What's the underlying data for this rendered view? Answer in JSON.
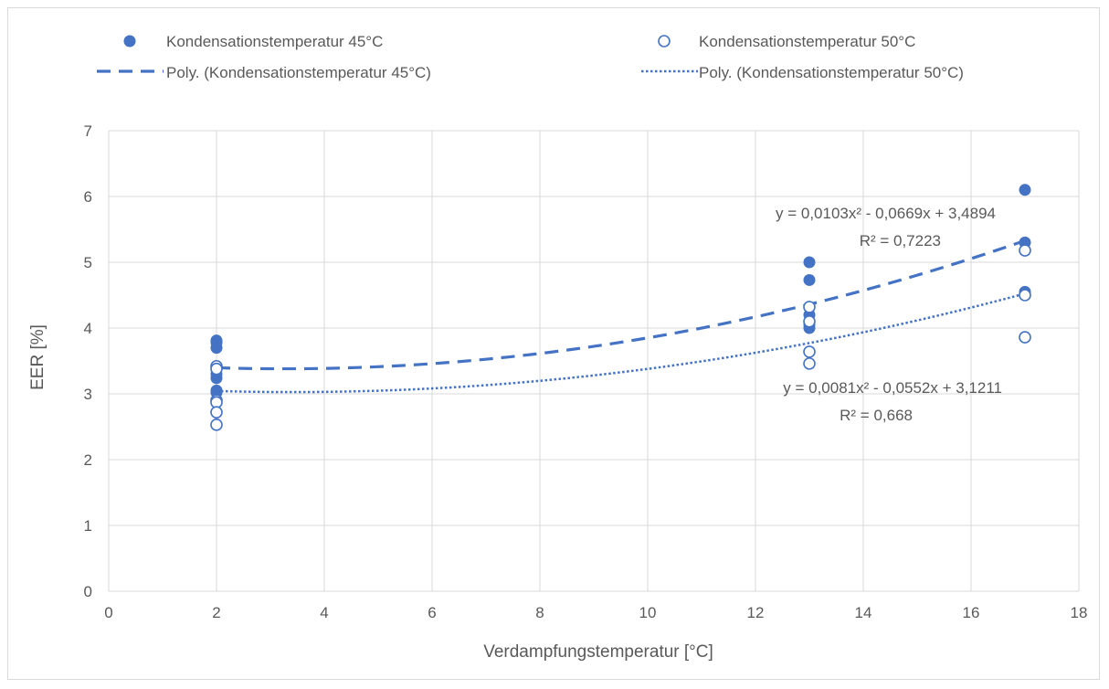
{
  "chart_data": {
    "type": "scatter",
    "title": "",
    "xlabel": "Verdampfungstemperatur [°C]",
    "ylabel": "EER [%]",
    "xlim": [
      0,
      18
    ],
    "ylim": [
      0,
      7
    ],
    "x_ticks": [
      0,
      2,
      4,
      6,
      8,
      10,
      12,
      14,
      16,
      18
    ],
    "y_ticks": [
      0,
      1,
      2,
      3,
      4,
      5,
      6,
      7
    ],
    "grid": true,
    "legend_position": "top",
    "colors": {
      "accent": "#4472c4",
      "grid": "#d9d9d9",
      "text": "#595959"
    },
    "series": [
      {
        "name": "Kondensationstemperatur 45°C",
        "marker": "filled-circle",
        "points": [
          [
            2,
            3.81
          ],
          [
            2,
            3.78
          ],
          [
            2,
            3.7
          ],
          [
            2,
            3.3
          ],
          [
            2,
            3.24
          ],
          [
            2,
            3.05
          ],
          [
            2,
            3.02
          ],
          [
            13,
            5.0
          ],
          [
            13,
            4.73
          ],
          [
            13,
            4.2
          ],
          [
            13,
            4.05
          ],
          [
            13,
            4.0
          ],
          [
            17,
            6.1
          ],
          [
            17,
            5.3
          ],
          [
            17,
            4.55
          ]
        ]
      },
      {
        "name": "Kondensationstemperatur 50°C",
        "marker": "hollow-circle",
        "points": [
          [
            2,
            3.42
          ],
          [
            2,
            3.38
          ],
          [
            2,
            2.9
          ],
          [
            2,
            2.87
          ],
          [
            2,
            2.72
          ],
          [
            2,
            2.53
          ],
          [
            13,
            4.32
          ],
          [
            13,
            4.1
          ],
          [
            13,
            3.64
          ],
          [
            13,
            3.46
          ],
          [
            17,
            5.18
          ],
          [
            17,
            4.5
          ],
          [
            17,
            3.86
          ]
        ]
      }
    ],
    "trendlines": [
      {
        "name": "Poly. (Kondensationstemperatur 45°C)",
        "style": "dashed",
        "coefficients": [
          0.0103,
          -0.0669,
          3.4894
        ],
        "x_range": [
          2,
          17
        ],
        "equation": "y = 0,0103x² - 0,0669x + 3,4894",
        "r2": "R² = 0,7223"
      },
      {
        "name": "Poly. (Kondensationstemperatur 50°C)",
        "style": "dotted",
        "coefficients": [
          0.0081,
          -0.0552,
          3.1211
        ],
        "x_range": [
          2,
          17
        ],
        "equation": "y = 0,0081x² - 0,0552x + 3,1211",
        "r2": "R² = 0,668"
      }
    ]
  }
}
